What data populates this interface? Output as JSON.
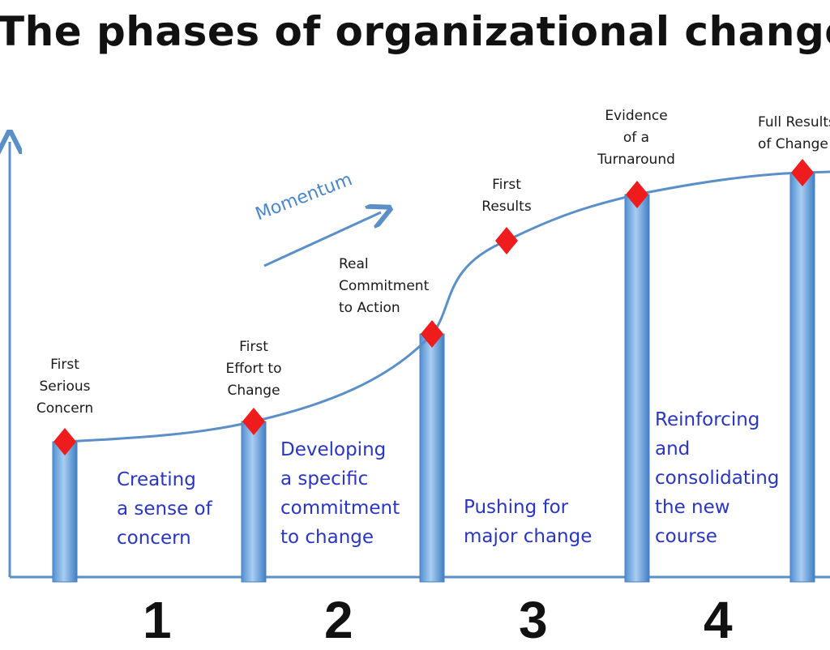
{
  "title": "The phases of organizational change",
  "momentum_label": "Momentum",
  "milestones": [
    {
      "label_lines": [
        "First",
        "Serious",
        "Concern"
      ]
    },
    {
      "label_lines": [
        "First",
        "Effort to",
        "Change"
      ]
    },
    {
      "label_lines": [
        "Real",
        "Commitment",
        "to Action"
      ]
    },
    {
      "label_lines": [
        "First",
        "Results"
      ]
    },
    {
      "label_lines": [
        "Evidence",
        "of a",
        "Turnaround"
      ]
    },
    {
      "label_lines": [
        "Full Results",
        "of Change"
      ]
    }
  ],
  "phases": [
    {
      "number": "1",
      "text_lines": [
        "Creating",
        "a sense of",
        "concern"
      ]
    },
    {
      "number": "2",
      "text_lines": [
        "Developing",
        "a specific",
        "commitment",
        "to change"
      ]
    },
    {
      "number": "3",
      "text_lines": [
        "Pushing for",
        "major change"
      ]
    },
    {
      "number": "4",
      "text_lines": [
        "Reinforcing",
        "and",
        "consolidating",
        "the new",
        "course"
      ]
    }
  ],
  "colors": {
    "curve": "#5b8fc7",
    "marker": "#ee1c1c",
    "bar": "#5b9bd5",
    "phase_text": "#2a35c0"
  }
}
